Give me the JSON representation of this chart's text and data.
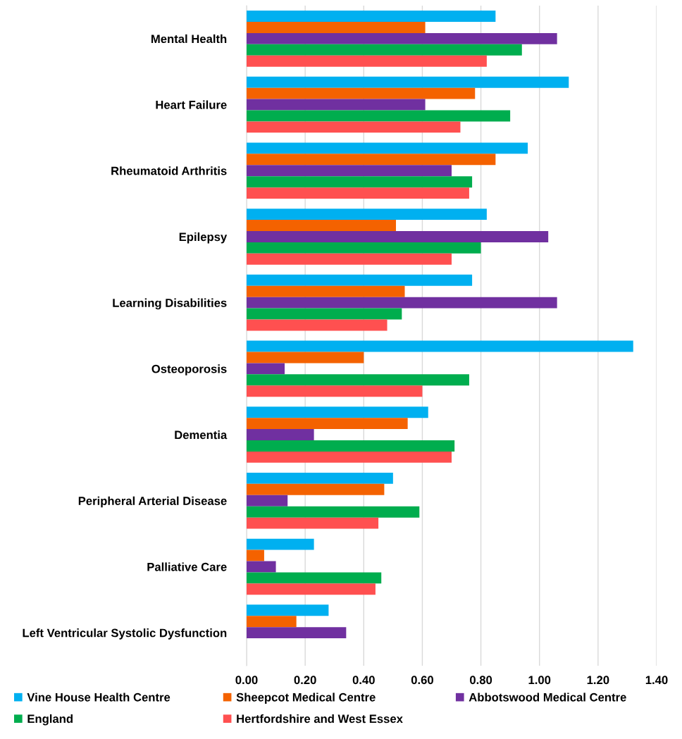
{
  "chart_data": {
    "type": "bar",
    "orientation": "horizontal",
    "categories": [
      "Mental Health",
      "Heart Failure",
      "Rheumatoid Arthritis",
      "Epilepsy",
      "Learning Disabilities",
      "Osteoporosis",
      "Dementia",
      "Peripheral Arterial Disease",
      "Palliative Care",
      "Left Ventricular Systolic Dysfunction"
    ],
    "series": [
      {
        "name": "Vine House Health Centre",
        "color": "#00b0f0",
        "values": [
          0.85,
          1.1,
          0.96,
          0.82,
          0.77,
          1.32,
          0.62,
          0.5,
          0.23,
          0.28
        ]
      },
      {
        "name": "Sheepcot Medical Centre",
        "color": "#f46200",
        "values": [
          0.61,
          0.78,
          0.85,
          0.51,
          0.54,
          0.4,
          0.55,
          0.47,
          0.06,
          0.17
        ]
      },
      {
        "name": "Abbotswood Medical Centre",
        "color": "#7030a0",
        "values": [
          1.06,
          0.61,
          0.7,
          1.03,
          1.06,
          0.13,
          0.23,
          0.14,
          0.1,
          0.34
        ]
      },
      {
        "name": "England",
        "color": "#00ad4e",
        "values": [
          0.94,
          0.9,
          0.77,
          0.8,
          0.53,
          0.76,
          0.71,
          0.59,
          0.46,
          null
        ]
      },
      {
        "name": "Hertfordshire and West Essex",
        "color": "#ff5050",
        "values": [
          0.82,
          0.73,
          0.76,
          0.7,
          0.48,
          0.6,
          0.7,
          0.45,
          0.44,
          null
        ]
      }
    ],
    "xlim": [
      0,
      1.4
    ],
    "xticks": [
      {
        "value": 0,
        "label": "0.00"
      },
      {
        "value": 0.2,
        "label": "0.20"
      },
      {
        "value": 0.4,
        "label": "0.40"
      },
      {
        "value": 0.6,
        "label": "0.60"
      },
      {
        "value": 0.8,
        "label": "0.80"
      },
      {
        "value": 1.0,
        "label": "1.00"
      },
      {
        "value": 1.2,
        "label": "1.20"
      },
      {
        "value": 1.4,
        "label": "1.40"
      }
    ],
    "grid": "x",
    "legend": "bottom"
  }
}
